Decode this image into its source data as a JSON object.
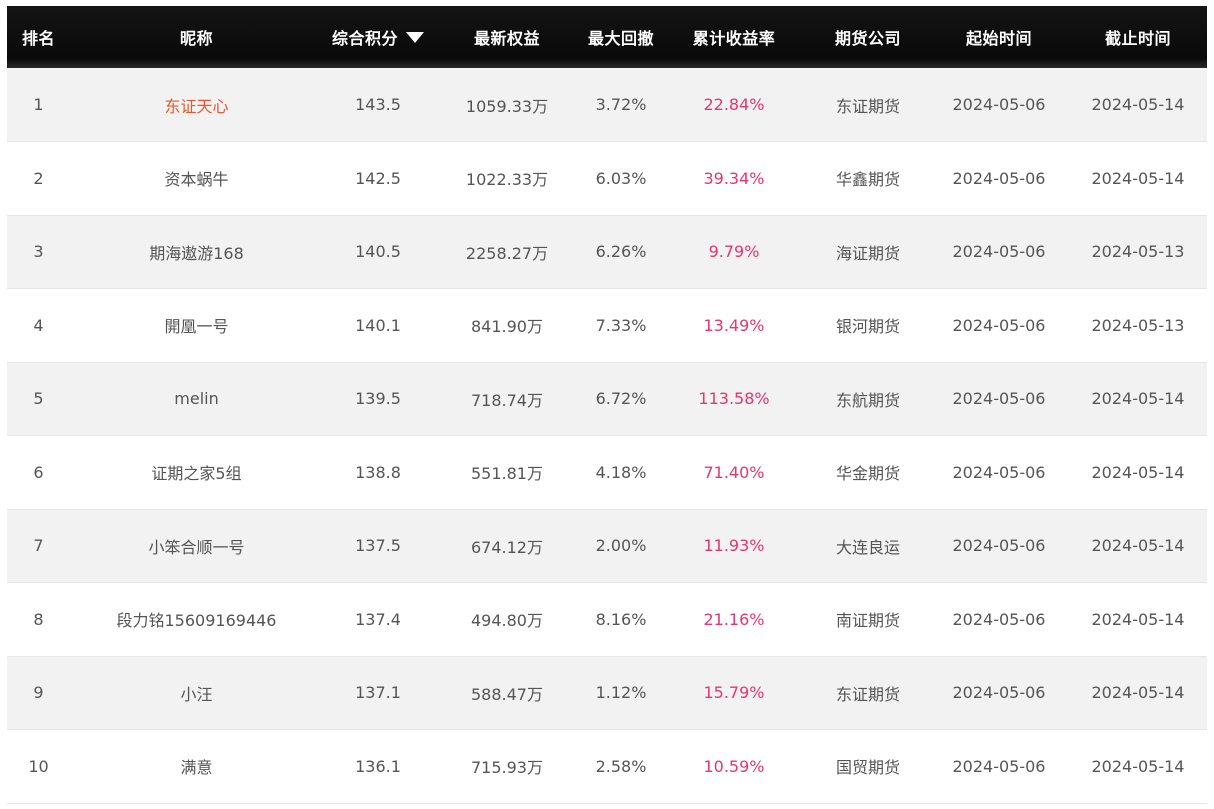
{
  "table": {
    "headers": {
      "rank": "排名",
      "nickname": "昵称",
      "score": "综合积分",
      "equity": "最新权益",
      "drawdown": "最大回撤",
      "return": "累计收益率",
      "company": "期货公司",
      "start": "起始时间",
      "end": "截止时间"
    },
    "sort_icon": "triangle-down-icon",
    "colors": {
      "header_bg": "#0b0b0b",
      "return_text": "#e8346f",
      "first_nickname": "#f0552a",
      "row_alt": "#f2f2f2"
    },
    "rows": [
      {
        "rank": "1",
        "nickname": "东证天心",
        "score": "143.5",
        "equity": "1059.33万",
        "drawdown": "3.72%",
        "return": "22.84%",
        "company": "东证期货",
        "start": "2024-05-06",
        "end": "2024-05-14"
      },
      {
        "rank": "2",
        "nickname": "资本蜗牛",
        "score": "142.5",
        "equity": "1022.33万",
        "drawdown": "6.03%",
        "return": "39.34%",
        "company": "华鑫期货",
        "start": "2024-05-06",
        "end": "2024-05-14"
      },
      {
        "rank": "3",
        "nickname": "期海遨游168",
        "score": "140.5",
        "equity": "2258.27万",
        "drawdown": "6.26%",
        "return": "9.79%",
        "company": "海证期货",
        "start": "2024-05-06",
        "end": "2024-05-13"
      },
      {
        "rank": "4",
        "nickname": "開凰一号",
        "score": "140.1",
        "equity": "841.90万",
        "drawdown": "7.33%",
        "return": "13.49%",
        "company": "银河期货",
        "start": "2024-05-06",
        "end": "2024-05-13"
      },
      {
        "rank": "5",
        "nickname": "melin",
        "score": "139.5",
        "equity": "718.74万",
        "drawdown": "6.72%",
        "return": "113.58%",
        "company": "东航期货",
        "start": "2024-05-06",
        "end": "2024-05-14"
      },
      {
        "rank": "6",
        "nickname": "证期之家5组",
        "score": "138.8",
        "equity": "551.81万",
        "drawdown": "4.18%",
        "return": "71.40%",
        "company": "华金期货",
        "start": "2024-05-06",
        "end": "2024-05-14"
      },
      {
        "rank": "7",
        "nickname": "小笨合顺一号",
        "score": "137.5",
        "equity": "674.12万",
        "drawdown": "2.00%",
        "return": "11.93%",
        "company": "大连良运",
        "start": "2024-05-06",
        "end": "2024-05-14"
      },
      {
        "rank": "8",
        "nickname": "段力铭15609169446",
        "score": "137.4",
        "equity": "494.80万",
        "drawdown": "8.16%",
        "return": "21.16%",
        "company": "南证期货",
        "start": "2024-05-06",
        "end": "2024-05-14"
      },
      {
        "rank": "9",
        "nickname": "小汪",
        "score": "137.1",
        "equity": "588.47万",
        "drawdown": "1.12%",
        "return": "15.79%",
        "company": "东证期货",
        "start": "2024-05-06",
        "end": "2024-05-14"
      },
      {
        "rank": "10",
        "nickname": "满意",
        "score": "136.1",
        "equity": "715.93万",
        "drawdown": "2.58%",
        "return": "10.59%",
        "company": "国贸期货",
        "start": "2024-05-06",
        "end": "2024-05-14"
      }
    ]
  }
}
